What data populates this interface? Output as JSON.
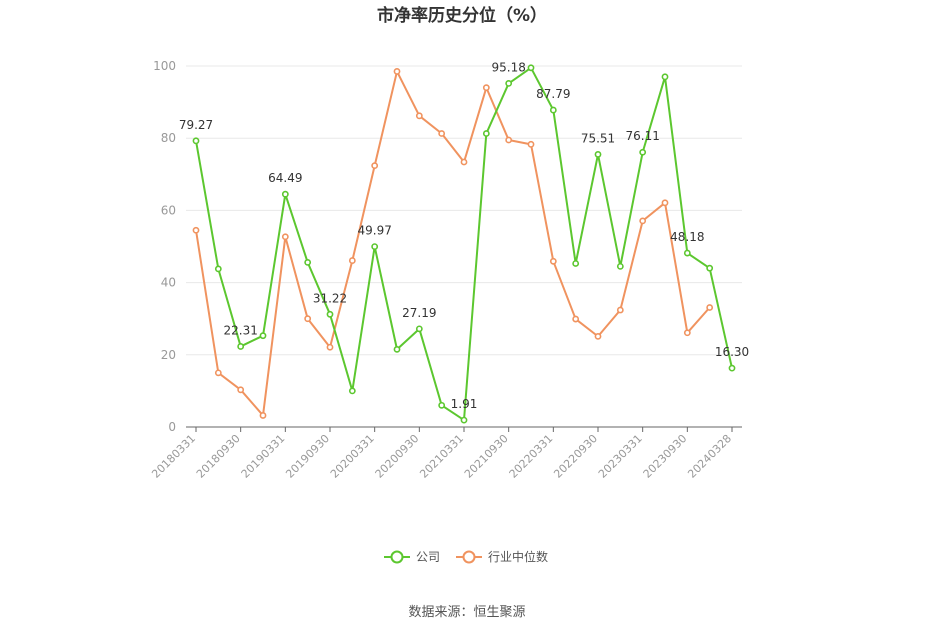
{
  "chart_data": {
    "type": "line",
    "title": "市净率历史分位（%）",
    "source": "数据来源：恒生聚源",
    "ylim": [
      0,
      100
    ],
    "yticks": [
      0,
      20,
      40,
      60,
      80,
      100
    ],
    "grid": true,
    "legend_position": "bottom",
    "x": [
      "20180331",
      "20180630",
      "20180930",
      "20181231",
      "20190331",
      "20190630",
      "20190930",
      "20191231",
      "20200331",
      "20200630",
      "20200930",
      "20201231",
      "20210331",
      "20210630",
      "20210930",
      "20211231",
      "20220331",
      "20220630",
      "20220930",
      "20221230",
      "20230331",
      "20230630",
      "20230930",
      "20231229",
      "20240328"
    ],
    "x_tick_labels": [
      "20180331",
      "20180930",
      "20190331",
      "20190930",
      "20200331",
      "20200930",
      "20210331",
      "20210930",
      "20220331",
      "20220930",
      "20230331",
      "20230930",
      "20240328"
    ],
    "series": [
      {
        "name": "公司",
        "color": "#5cc72f",
        "values": [
          79.27,
          43.8,
          22.31,
          25.3,
          64.49,
          45.6,
          31.22,
          10.0,
          49.97,
          21.5,
          27.19,
          6.0,
          1.91,
          81.3,
          95.18,
          99.5,
          87.79,
          45.3,
          75.51,
          44.5,
          76.11,
          97.0,
          48.18,
          44.0,
          16.3
        ],
        "labels": {
          "0": "79.27",
          "2": "22.31",
          "4": "64.49",
          "6": "31.22",
          "8": "49.97",
          "10": "27.19",
          "12": "1.91",
          "14": "95.18",
          "16": "87.79",
          "18": "75.51",
          "20": "76.11",
          "22": "48.18",
          "24": "16.30"
        }
      },
      {
        "name": "行业中位数",
        "color": "#f0935f",
        "values": [
          54.5,
          15.0,
          10.3,
          3.2,
          52.7,
          30.0,
          22.1,
          46.1,
          72.4,
          98.5,
          86.2,
          81.3,
          73.4,
          94.0,
          79.5,
          78.3,
          45.9,
          29.9,
          25.1,
          32.4,
          57.1,
          62.1,
          26.1,
          33.1,
          null
        ]
      }
    ]
  }
}
